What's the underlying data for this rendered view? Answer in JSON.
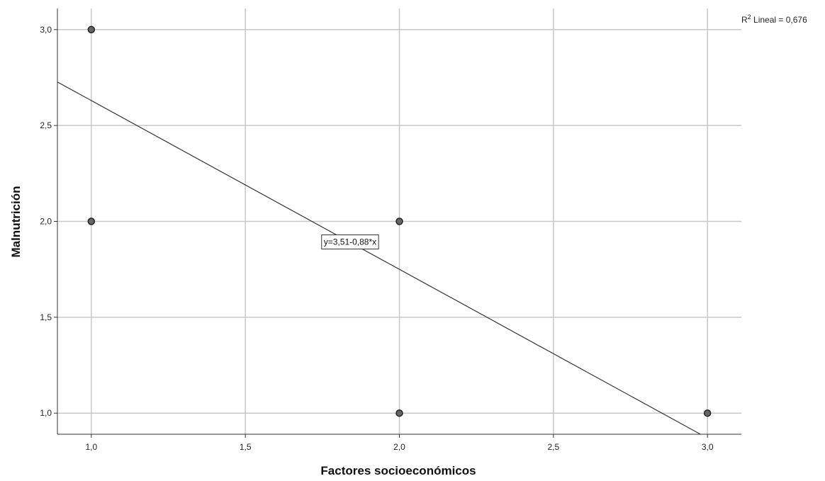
{
  "chart_data": {
    "type": "scatter",
    "xlabel": "Factores socioeconómicos",
    "ylabel": "Malnutrición",
    "xlim": [
      0.89,
      3.11
    ],
    "ylim": [
      0.89,
      3.11
    ],
    "x_ticks": [
      1.0,
      1.5,
      2.0,
      2.5,
      3.0
    ],
    "y_ticks": [
      1.0,
      1.5,
      2.0,
      2.5,
      3.0
    ],
    "x_tick_labels": [
      "1,0",
      "1,5",
      "2,0",
      "2,5",
      "3,0"
    ],
    "y_tick_labels": [
      "1,0",
      "1,5",
      "2,0",
      "2,5",
      "3,0"
    ],
    "grid": true,
    "points": [
      {
        "x": 1,
        "y": 3
      },
      {
        "x": 1,
        "y": 2
      },
      {
        "x": 2,
        "y": 2
      },
      {
        "x": 2,
        "y": 1
      },
      {
        "x": 3,
        "y": 1
      }
    ],
    "fit_line": {
      "intercept": 3.51,
      "slope": -0.88
    },
    "equation_label": "y=3,51-0,88*x",
    "r2_label": {
      "prefix": "R",
      "sup": "2",
      "text": " Lineal = 0,676"
    },
    "colors": {
      "grid": "#c8c8c8",
      "point_fill": "#666666",
      "point_stroke": "#222222",
      "line": "#333333",
      "axis": "#333333"
    }
  }
}
